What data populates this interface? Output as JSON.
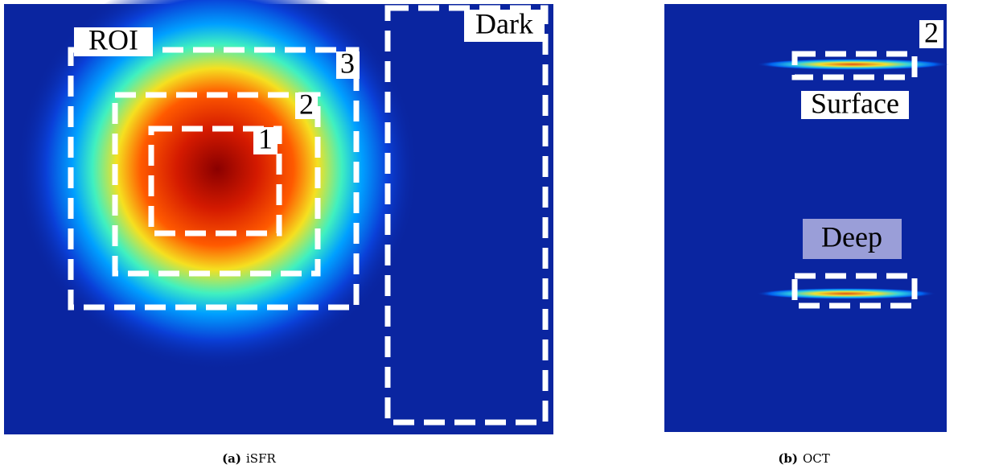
{
  "panels": [
    {
      "caption_label": "(a)",
      "caption": "iSFR",
      "labels": {
        "roi": "ROI",
        "dark": "Dark",
        "box1": "1",
        "box2": "2",
        "box3": "3"
      }
    },
    {
      "caption_label": "(b)",
      "caption": "OCT",
      "labels": {
        "box2": "2",
        "surface": "Surface",
        "deep": "Deep"
      }
    }
  ]
}
